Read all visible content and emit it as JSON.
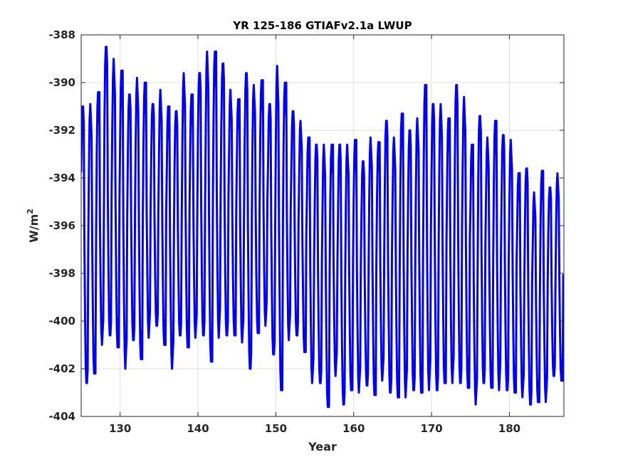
{
  "chart_data": {
    "type": "line",
    "title": "YR 125-186 GTIAFv2.1a LWUP",
    "xlabel": "Year",
    "ylabel_main": "W/m",
    "ylabel_sup": "2",
    "xlim": [
      125,
      187
    ],
    "ylim": [
      -404,
      -388
    ],
    "xticks": [
      130,
      140,
      150,
      160,
      170,
      180
    ],
    "xtick_labels": [
      "130",
      "140",
      "150",
      "160",
      "170",
      "180"
    ],
    "yticks": [
      -404,
      -402,
      -400,
      -398,
      -396,
      -394,
      -392,
      -390,
      -388
    ],
    "ytick_labels": [
      "-404",
      "-402",
      "-400",
      "-398",
      "-396",
      "-394",
      "-392",
      "-390",
      "-388"
    ],
    "grid": true,
    "series": [
      {
        "color": "#0000ff",
        "sampling": "monthly",
        "start": 125.0,
        "annual_maxima": [
          -391.0,
          -390.9,
          -390.4,
          -388.5,
          -389.0,
          -389.5,
          -390.5,
          -389.8,
          -390.0,
          -390.9,
          -390.3,
          -391.0,
          -391.2,
          -389.6,
          -390.5,
          -389.6,
          -388.7,
          -388.7,
          -389.2,
          -390.3,
          -390.7,
          -389.6,
          -390.1,
          -389.9,
          -390.9,
          -389.3,
          -390.0,
          -391.2,
          -391.6,
          -392.3,
          -392.6,
          -392.6,
          -392.6,
          -392.6,
          -392.6,
          -392.4,
          -393.3,
          -392.3,
          -392.5,
          -391.6,
          -392.3,
          -391.3,
          -392.0,
          -391.5,
          -390.1,
          -390.9,
          -390.9,
          -391.5,
          -390.1,
          -390.6,
          -392.6,
          -391.4,
          -392.3,
          -391.6,
          -392.2,
          -392.4,
          -393.8,
          -393.6,
          -394.6,
          -393.7,
          -394.4,
          -393.8
        ],
        "annual_minima": [
          -402.6,
          -402.2,
          -401.0,
          -400.6,
          -401.1,
          -402.0,
          -400.8,
          -401.6,
          -400.7,
          -400.2,
          -401.0,
          -402.0,
          -400.6,
          -401.1,
          -400.7,
          -400.6,
          -401.7,
          -400.7,
          -400.6,
          -400.6,
          -400.9,
          -402.0,
          -400.5,
          -400.2,
          -401.4,
          -402.9,
          -400.8,
          -400.6,
          -401.3,
          -402.6,
          -402.6,
          -403.6,
          -402.3,
          -403.5,
          -402.9,
          -403.0,
          -402.7,
          -403.1,
          -402.5,
          -403.0,
          -403.2,
          -403.2,
          -402.9,
          -403.0,
          -402.9,
          -402.9,
          -402.6,
          -402.6,
          -402.6,
          -402.8,
          -403.5,
          -402.6,
          -402.8,
          -402.9,
          -402.9,
          -403.0,
          -403.2,
          -403.5,
          -403.4,
          -403.4,
          -402.3,
          -402.5
        ]
      }
    ]
  }
}
